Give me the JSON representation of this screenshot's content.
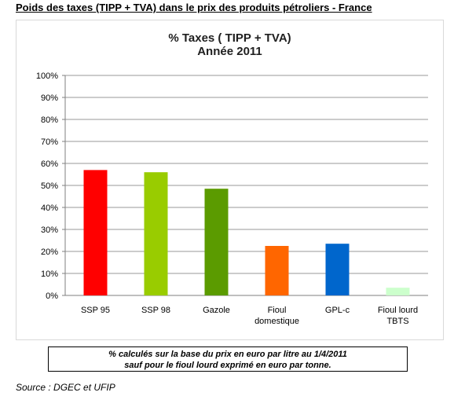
{
  "header": {
    "title": "Poids des taxes (TIPP + TVA) dans le prix des produits pétroliers - France"
  },
  "chart_data": {
    "type": "bar",
    "title": "% Taxes ( TIPP + TVA)",
    "subtitle": "Année 2011",
    "categories": [
      [
        "SSP 95"
      ],
      [
        "SSP 98"
      ],
      [
        "Gazole"
      ],
      [
        "Fioul",
        "domestique"
      ],
      [
        "GPL-c"
      ],
      [
        "Fioul lourd",
        "TBTS"
      ]
    ],
    "values": [
      57,
      56,
      48.5,
      22.5,
      23.5,
      3.5
    ],
    "bar_colors": [
      "#ff0000",
      "#99cc00",
      "#5b9b00",
      "#ff6600",
      "#0066cc",
      "#ccffcc"
    ],
    "ylim": [
      0,
      100
    ],
    "yticks": [
      "0%",
      "10%",
      "20%",
      "30%",
      "40%",
      "50%",
      "60%",
      "70%",
      "80%",
      "90%",
      "100%"
    ],
    "grid": true,
    "legend": "none"
  },
  "note": {
    "line1": "% calculés sur la base du prix en euro par litre au 1/4/2011",
    "line2": "sauf pour le fioul lourd exprimé en euro par tonne."
  },
  "source": "Source : DGEC et UFIP"
}
